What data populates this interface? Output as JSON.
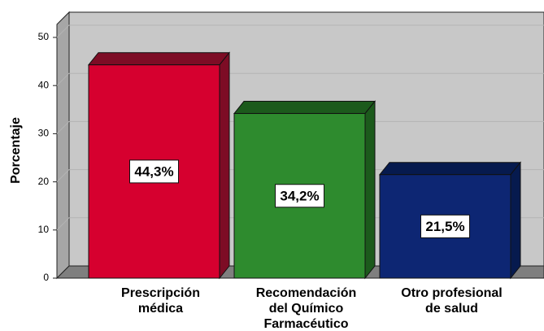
{
  "chart_data": {
    "type": "bar3d",
    "y_label": "Porcentaje",
    "categories": [
      [
        "Prescripción",
        "médica"
      ],
      [
        "Recomendación",
        "del Químico",
        "Farmacéutico"
      ],
      [
        "Otro profesional",
        "de salud"
      ]
    ],
    "values": [
      44.3,
      34.2,
      21.5
    ],
    "value_labels": [
      "44,3%",
      "34,2%",
      "21,5%"
    ],
    "colors": [
      "#d6002f",
      "#2e8b2e",
      "#0d2673"
    ],
    "side_colors": [
      "#7d0c25",
      "#1c5a1c",
      "#061a4e"
    ],
    "ylim": [
      0,
      50
    ],
    "yticks": [
      0,
      10,
      20,
      30,
      40,
      50
    ],
    "grid": true
  }
}
